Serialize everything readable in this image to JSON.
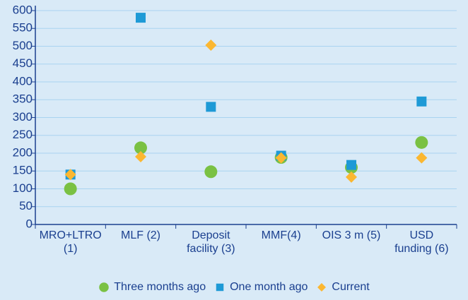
{
  "chart_data": {
    "type": "dot",
    "categories": [
      "MRO+LTRO\n(1)",
      "MLF (2)",
      "Deposit\nfacility (3)",
      "MMF(4)",
      "OIS 3 m (5)",
      "USD\nfunding (6)"
    ],
    "series": [
      {
        "name": "Three months ago",
        "color": "#7ac143",
        "marker": "circle",
        "values": [
          100,
          215,
          148,
          188,
          160,
          230
        ]
      },
      {
        "name": "One month ago",
        "color": "#1e9ad6",
        "marker": "square",
        "values": [
          140,
          580,
          330,
          193,
          167,
          345
        ]
      },
      {
        "name": "Current",
        "color": "#fbb731",
        "marker": "diamond",
        "values": [
          140,
          190,
          503,
          187,
          133,
          187
        ]
      }
    ],
    "ylim": [
      0,
      600
    ],
    "yticks": [
      0,
      50,
      100,
      150,
      200,
      250,
      300,
      350,
      400,
      450,
      500,
      550,
      600
    ],
    "grid": true,
    "legend": "bottom"
  }
}
